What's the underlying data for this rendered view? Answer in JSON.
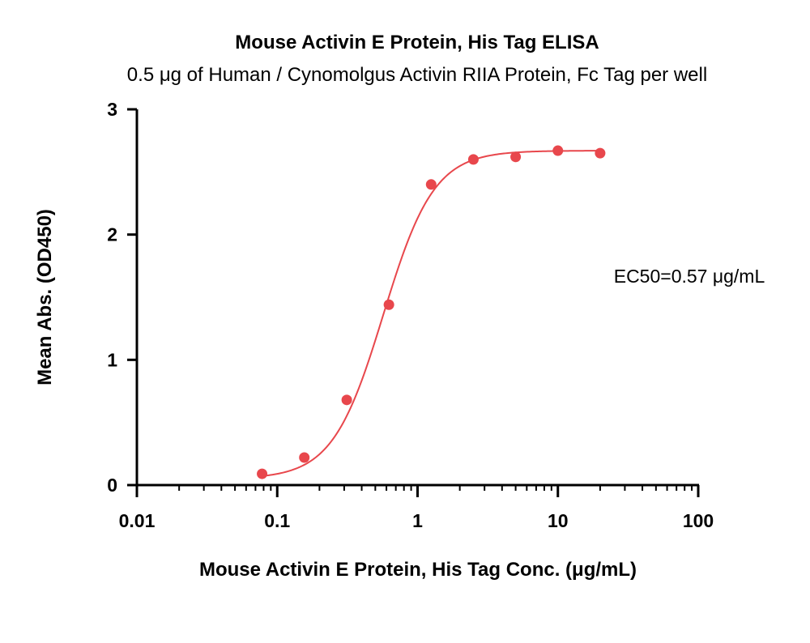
{
  "chart_data": {
    "type": "scatter",
    "title": "Mouse Activin E Protein, His Tag ELISA",
    "subtitle": "0.5 μg of Human / Cynomolgus Activin RIIA Protein, Fc Tag per well",
    "xlabel": "Mouse Activin E Protein, His Tag Conc. (μg/mL)",
    "ylabel": "Mean Abs. (OD450)",
    "x_scale": "log",
    "xlim": [
      0.01,
      100
    ],
    "ylim": [
      0,
      3
    ],
    "x_ticks": [
      "0.01",
      "0.1",
      "1",
      "10",
      "100"
    ],
    "y_ticks": [
      "0",
      "1",
      "2",
      "3"
    ],
    "grid": false,
    "annotation": "EC50=0.57 μg/mL",
    "color": "#e8474c",
    "points": {
      "x": [
        0.078,
        0.156,
        0.313,
        0.625,
        1.25,
        2.5,
        5,
        10,
        20
      ],
      "y": [
        0.09,
        0.22,
        0.68,
        1.44,
        2.4,
        2.6,
        2.62,
        2.67,
        2.65
      ]
    },
    "fit": {
      "model": "4PL",
      "bottom": 0.05,
      "top": 2.67,
      "ec50": 0.57,
      "hill": 2.4
    }
  }
}
